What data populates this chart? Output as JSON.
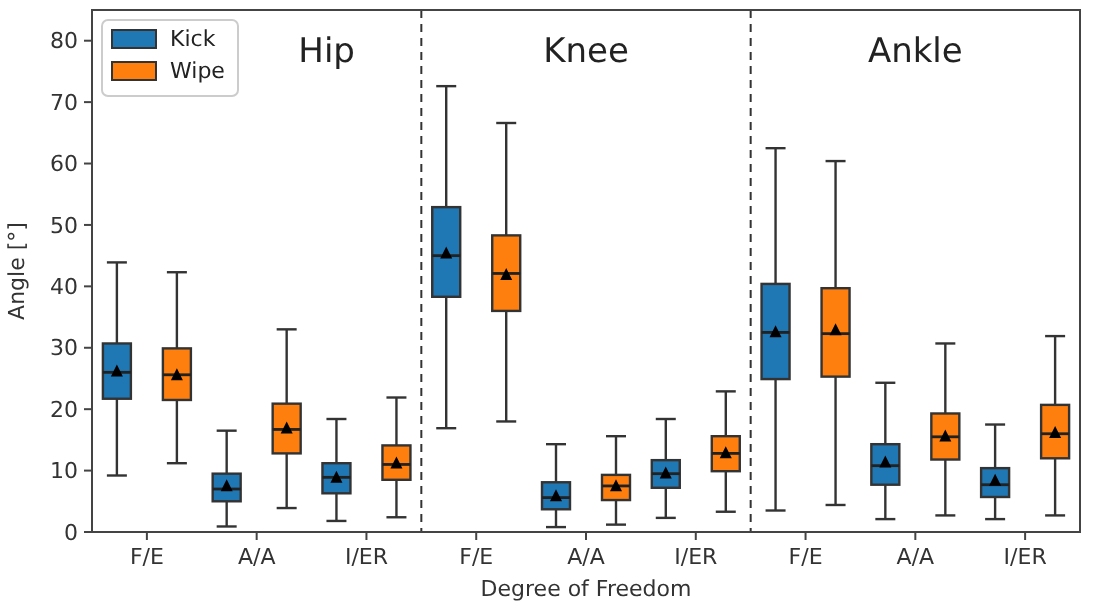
{
  "chart_data": {
    "type": "box",
    "xlabel": "Degree of Freedom",
    "ylabel": "Angle [°]",
    "categories": [
      "F/E",
      "A/A",
      "I/ER",
      "F/E",
      "A/A",
      "I/ER",
      "F/E",
      "A/A",
      "I/ER"
    ],
    "annotations": [
      "Hip",
      "Knee",
      "Ankle"
    ],
    "ylim": [
      0,
      85
    ],
    "yticks": [
      0,
      10,
      20,
      30,
      40,
      50,
      60,
      70,
      80
    ],
    "grid": false,
    "legend": "top left",
    "marker": "triangle",
    "series": [
      {
        "name": "Kick",
        "color": "#1f77b4",
        "boxes": [
          {
            "low": 9.2,
            "q1": 21.7,
            "median": 26,
            "q3": 30.7,
            "high": 43.9,
            "mean": 26.3
          },
          {
            "low": 0.9,
            "q1": 5,
            "median": 7,
            "q3": 9.5,
            "high": 16.5,
            "mean": 7.6
          },
          {
            "low": 1.8,
            "q1": 6.3,
            "median": 8.9,
            "q3": 11.2,
            "high": 18.4,
            "mean": 9
          },
          {
            "low": 16.9,
            "q1": 38.3,
            "median": 45,
            "q3": 52.9,
            "high": 72.6,
            "mean": 45.5
          },
          {
            "low": 0.8,
            "q1": 3.7,
            "median": 5.6,
            "q3": 8.1,
            "high": 14.3,
            "mean": 6
          },
          {
            "low": 2.3,
            "q1": 7.2,
            "median": 9.5,
            "q3": 11.7,
            "high": 18.4,
            "mean": 9.7
          },
          {
            "low": 3.5,
            "q1": 24.9,
            "median": 32.5,
            "q3": 40.4,
            "high": 62.5,
            "mean": 32.7
          },
          {
            "low": 2.1,
            "q1": 7.7,
            "median": 10.8,
            "q3": 14.3,
            "high": 24.3,
            "mean": 11.5
          },
          {
            "low": 2.1,
            "q1": 5.7,
            "median": 7.7,
            "q3": 10.4,
            "high": 17.5,
            "mean": 8.5
          }
        ]
      },
      {
        "name": "Wipe",
        "color": "#ff7f0e",
        "boxes": [
          {
            "low": 11.2,
            "q1": 21.5,
            "median": 25.6,
            "q3": 29.9,
            "high": 42.3,
            "mean": 25.7
          },
          {
            "low": 3.9,
            "q1": 12.8,
            "median": 16.7,
            "q3": 20.9,
            "high": 33,
            "mean": 17
          },
          {
            "low": 2.4,
            "q1": 8.5,
            "median": 11,
            "q3": 14.1,
            "high": 21.9,
            "mean": 11.3
          },
          {
            "low": 18,
            "q1": 36,
            "median": 42.1,
            "q3": 48.3,
            "high": 66.6,
            "mean": 42
          },
          {
            "low": 1.2,
            "q1": 5.2,
            "median": 7.5,
            "q3": 9.3,
            "high": 15.6,
            "mean": 7.6
          },
          {
            "low": 3.3,
            "q1": 9.9,
            "median": 12.8,
            "q3": 15.6,
            "high": 22.9,
            "mean": 13
          },
          {
            "low": 4.4,
            "q1": 25.3,
            "median": 32.3,
            "q3": 39.7,
            "high": 60.4,
            "mean": 33
          },
          {
            "low": 2.7,
            "q1": 11.8,
            "median": 15.5,
            "q3": 19.3,
            "high": 30.7,
            "mean": 15.7
          },
          {
            "low": 2.7,
            "q1": 12,
            "median": 16,
            "q3": 20.7,
            "high": 31.9,
            "mean": 16.3
          }
        ]
      }
    ]
  }
}
